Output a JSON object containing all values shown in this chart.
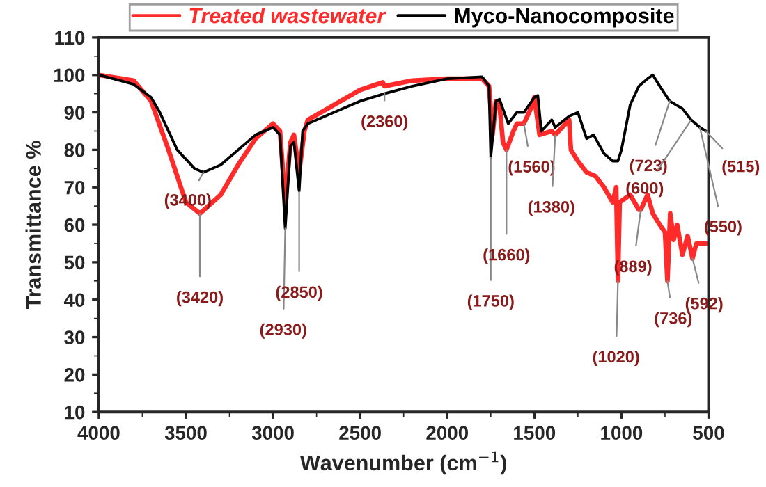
{
  "chart_data": {
    "type": "line",
    "xlabel": "Wavenumber (cm$^{−1}$)",
    "ylabel": "Transmittance %",
    "xlim": [
      4000,
      500
    ],
    "xticks": [
      4000,
      3500,
      3000,
      2500,
      2000,
      1500,
      1000,
      500
    ],
    "ylim": [
      10,
      110
    ],
    "yticks": [
      10,
      20,
      30,
      40,
      50,
      60,
      70,
      80,
      90,
      100,
      110
    ],
    "grid": false,
    "legend": "top",
    "marker": "none",
    "line_style": "solid",
    "series": [
      {
        "name": "Treated wastewater",
        "color": "#ff2a2a",
        "x": [
          4000,
          3800,
          3700,
          3600,
          3500,
          3420,
          3300,
          3200,
          3100,
          3000,
          2960,
          2930,
          2900,
          2880,
          2850,
          2820,
          2800,
          2500,
          2370,
          2360,
          2200,
          2000,
          1800,
          1760,
          1740,
          1720,
          1700,
          1680,
          1660,
          1620,
          1600,
          1560,
          1520,
          1500,
          1470,
          1400,
          1380,
          1300,
          1290,
          1250,
          1200,
          1150,
          1100,
          1050,
          1030,
          1020,
          1010,
          950,
          900,
          889,
          850,
          820,
          780,
          750,
          736,
          720,
          700,
          680,
          650,
          620,
          592,
          570,
          540,
          515
        ],
        "values": [
          100,
          98.5,
          93,
          80,
          66,
          63,
          68,
          76,
          83,
          87,
          85,
          66,
          82,
          84,
          74,
          85,
          88,
          96,
          98,
          97,
          98.5,
          99,
          99,
          97,
          84,
          93,
          92,
          82,
          80,
          85,
          87,
          87,
          91,
          94,
          84,
          85,
          84,
          88,
          80,
          77,
          74,
          73,
          70,
          66,
          70,
          45,
          66,
          68,
          64,
          64,
          68,
          63,
          60,
          58,
          45,
          63,
          56,
          60,
          52,
          57,
          51,
          55,
          55,
          55
        ]
      },
      {
        "name": "Myco-Nanocomposite",
        "color": "#000000",
        "x": [
          4000,
          3800,
          3700,
          3650,
          3550,
          3450,
          3400,
          3300,
          3200,
          3100,
          3000,
          2960,
          2930,
          2900,
          2880,
          2850,
          2830,
          2800,
          2500,
          2360,
          2200,
          2000,
          1800,
          1760,
          1750,
          1720,
          1700,
          1650,
          1600,
          1560,
          1500,
          1480,
          1460,
          1400,
          1380,
          1300,
          1250,
          1200,
          1160,
          1100,
          1050,
          1020,
          1000,
          950,
          900,
          850,
          820,
          780,
          723,
          650,
          600,
          550,
          515
        ],
        "values": [
          100,
          97.5,
          94,
          90,
          80,
          75,
          74,
          76,
          80,
          84,
          86,
          84,
          59,
          81,
          82,
          69,
          85,
          87,
          93,
          95,
          97,
          99,
          99.5,
          97,
          78,
          93,
          93.5,
          87,
          90,
          90,
          94,
          94.5,
          85,
          88,
          86,
          89,
          90,
          83,
          84,
          79,
          77,
          77,
          80,
          92,
          97,
          99,
          100,
          97,
          93,
          91,
          88,
          86,
          85
        ]
      }
    ],
    "annotations": [
      {
        "text": "(3400)",
        "x": 3400,
        "y": 74
      },
      {
        "text": "(3420)",
        "x": 3420,
        "y": 63
      },
      {
        "text": "(2930)",
        "x": 2930,
        "y": 59
      },
      {
        "text": "(2850)",
        "x": 2850,
        "y": 69
      },
      {
        "text": "(2360)",
        "x": 2360,
        "y": 95
      },
      {
        "text": "(1750)",
        "x": 1750,
        "y": 78
      },
      {
        "text": "(1660)",
        "x": 1660,
        "y": 80
      },
      {
        "text": "(1560)",
        "x": 1560,
        "y": 87
      },
      {
        "text": "(1380)",
        "x": 1380,
        "y": 84
      },
      {
        "text": "(1020)",
        "x": 1020,
        "y": 45
      },
      {
        "text": "(889)",
        "x": 889,
        "y": 64
      },
      {
        "text": "(736)",
        "x": 736,
        "y": 45
      },
      {
        "text": "(592)",
        "x": 592,
        "y": 51
      },
      {
        "text": "(723)",
        "x": 723,
        "y": 93
      },
      {
        "text": "(600)",
        "x": 600,
        "y": 88
      },
      {
        "text": "(550)",
        "x": 550,
        "y": 86
      },
      {
        "text": "(515)",
        "x": 515,
        "y": 85
      }
    ]
  }
}
